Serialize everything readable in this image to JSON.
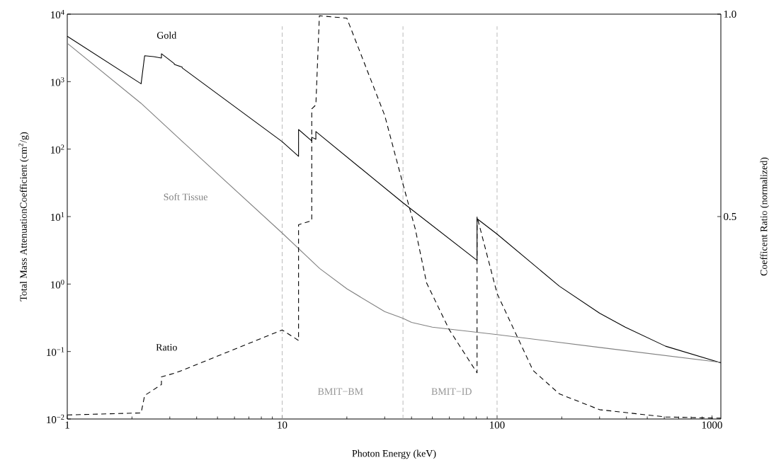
{
  "chart_data": {
    "type": "line",
    "xlabel": "Photon Energy (keV)",
    "ylabel": "Total Mass AttenuationCoefficient (cm$^{2}$/g)",
    "y2label": "Coefficent Ratio (normalized)",
    "log": "xy",
    "xlim": [
      1,
      1100
    ],
    "xticks": [
      1,
      10,
      100,
      1000
    ],
    "ylim": [
      0.01,
      10000
    ],
    "yticks": [
      {
        "value": 0.01,
        "label": "10$^{−2}$"
      },
      {
        "value": 0.1,
        "label": "10$^{−1}$"
      },
      {
        "value": 1,
        "label": "10$^{0}$"
      },
      {
        "value": 10,
        "label": "10$^{1}$"
      },
      {
        "value": 100,
        "label": "10$^{2}$"
      },
      {
        "value": 1000,
        "label": "10$^{3}$"
      },
      {
        "value": 10000,
        "label": "10$^{4}$"
      }
    ],
    "y2lim": [
      0,
      1
    ],
    "y2ticks": [
      0.5,
      {
        "value": 1,
        "label": "1.0"
      }
    ],
    "series": [
      {
        "name": "Gold",
        "color": "#000000",
        "line_style": "solid",
        "x": [
          1,
          2.206,
          2.291,
          2.52,
          2.743,
          2.743,
          3.148,
          3.148,
          3.425,
          3.425,
          10,
          11.92,
          11.92,
          13.73,
          13.73,
          14.35,
          14.35,
          36.5,
          80.7,
          80.7,
          100,
          195,
          300,
          395,
          608,
          1100
        ],
        "values": [
          4700,
          930,
          2420,
          2350,
          2240,
          2590,
          1850,
          1800,
          1640,
          1600,
          129,
          78,
          195,
          132,
          150,
          140,
          182,
          16,
          2.24,
          9.3,
          5.5,
          0.93,
          0.37,
          0.23,
          0.12,
          0.068
        ]
      },
      {
        "name": "Soft Tissue",
        "color": "#808080",
        "line_style": "solid",
        "x": [
          1,
          2.2,
          3.63,
          10,
          14.95,
          20,
          30,
          36.5,
          40,
          50,
          100,
          300,
          1100
        ],
        "values": [
          3700,
          480,
          110,
          5.7,
          1.7,
          0.85,
          0.39,
          0.31,
          0.27,
          0.23,
          0.178,
          0.115,
          0.069
        ]
      },
      {
        "name": "Ratio",
        "color": "#000000",
        "line_style": "dashed",
        "axis": "y2",
        "x": [
          1,
          2.206,
          2.291,
          2.743,
          2.743,
          3.148,
          3.425,
          10,
          11.92,
          11.92,
          13.73,
          13.73,
          14.35,
          14.9,
          20,
          30,
          36.5,
          41.6,
          47,
          60,
          80.7,
          80.7,
          100,
          147,
          195,
          300,
          608,
          1100
        ],
        "values": [
          0.01,
          0.015,
          0.058,
          0.085,
          0.104,
          0.113,
          0.12,
          0.22,
          0.194,
          0.48,
          0.49,
          0.766,
          0.776,
          0.996,
          0.99,
          0.75,
          0.58,
          0.47,
          0.336,
          0.22,
          0.114,
          0.5,
          0.31,
          0.12,
          0.062,
          0.023,
          0.005,
          0.002
        ]
      }
    ],
    "ref_lines": [
      {
        "axis": "x",
        "value": 10,
        "color": "#aaaaaa",
        "line_style": "dashed"
      },
      {
        "axis": "x",
        "value": 36.5,
        "color": "#aaaaaa",
        "line_style": "dashed"
      },
      {
        "axis": "x",
        "value": 100,
        "color": "#aaaaaa",
        "line_style": "dashed"
      }
    ],
    "annotations": [
      "BMIT−BM",
      "BMIT−ID"
    ]
  }
}
